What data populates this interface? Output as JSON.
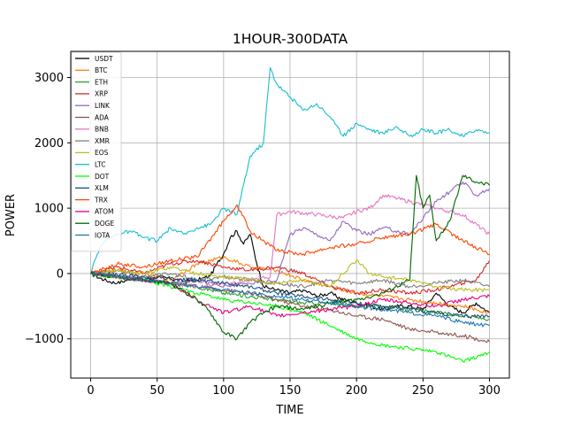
{
  "chart_data": {
    "type": "line",
    "title": "1HOUR-300DATA",
    "xlabel": "TIME",
    "ylabel": "POWER",
    "xlim": [
      -15,
      315
    ],
    "ylim": [
      -1600,
      3400
    ],
    "xticks": [
      0,
      50,
      100,
      150,
      200,
      250,
      300
    ],
    "yticks": [
      -1000,
      0,
      1000,
      2000,
      3000
    ],
    "ytick_labels": [
      "−1000",
      "0",
      "1000",
      "2000",
      "3000"
    ],
    "grid": true,
    "legend_position": "upper-left",
    "series": [
      {
        "name": "USDT",
        "color": "#000000",
        "x": [
          0,
          10,
          20,
          30,
          40,
          50,
          60,
          70,
          80,
          90,
          95,
          100,
          105,
          110,
          115,
          120,
          125,
          130,
          140,
          150,
          160,
          170,
          180,
          190,
          200,
          210,
          220,
          230,
          240,
          250,
          260,
          270,
          280,
          290,
          300
        ],
        "values": [
          0,
          -100,
          -150,
          -80,
          -100,
          -50,
          -80,
          -120,
          -100,
          -40,
          150,
          300,
          550,
          650,
          450,
          600,
          150,
          -200,
          -250,
          -300,
          -250,
          -350,
          -300,
          -400,
          -450,
          -500,
          -550,
          -500,
          -500,
          -550,
          -300,
          -500,
          -600,
          -450,
          -600
        ]
      },
      {
        "name": "BTC",
        "color": "#ff7f0e",
        "x": [
          0,
          20,
          40,
          60,
          80,
          100,
          120,
          140,
          160,
          180,
          200,
          220,
          240,
          260,
          280,
          300
        ],
        "values": [
          0,
          50,
          0,
          -100,
          150,
          250,
          100,
          50,
          -100,
          -200,
          -300,
          -350,
          -400,
          -450,
          -500,
          -600
        ]
      },
      {
        "name": "ETH",
        "color": "#2ca02c",
        "x": [
          0,
          20,
          40,
          60,
          80,
          100,
          120,
          140,
          160,
          180,
          200,
          220,
          240,
          260,
          280,
          300
        ],
        "values": [
          0,
          -50,
          -100,
          -150,
          -200,
          -300,
          -350,
          -400,
          -450,
          -450,
          -500,
          -500,
          -550,
          -600,
          -650,
          -700
        ]
      },
      {
        "name": "XRP",
        "color": "#d62728",
        "x": [
          0,
          20,
          40,
          60,
          80,
          100,
          120,
          140,
          160,
          180,
          200,
          220,
          240,
          260,
          280,
          290,
          300
        ],
        "values": [
          0,
          100,
          0,
          150,
          200,
          100,
          50,
          100,
          0,
          -200,
          -300,
          -250,
          -300,
          -250,
          -150,
          -100,
          200
        ]
      },
      {
        "name": "LINK",
        "color": "#9467bd",
        "x": [
          0,
          20,
          40,
          60,
          80,
          100,
          120,
          140,
          150,
          160,
          170,
          180,
          190,
          200,
          210,
          220,
          240,
          260,
          280,
          290,
          300
        ],
        "values": [
          0,
          -50,
          -100,
          -150,
          -100,
          -200,
          -150,
          -100,
          600,
          700,
          600,
          500,
          800,
          650,
          600,
          700,
          600,
          1100,
          1400,
          1200,
          1300
        ]
      },
      {
        "name": "ADA",
        "color": "#8c564b",
        "x": [
          0,
          20,
          40,
          60,
          80,
          100,
          120,
          140,
          160,
          180,
          200,
          220,
          240,
          260,
          280,
          300
        ],
        "values": [
          0,
          -50,
          -100,
          -150,
          -200,
          -250,
          -300,
          -400,
          -500,
          -550,
          -650,
          -700,
          -850,
          -900,
          -950,
          -1050
        ]
      },
      {
        "name": "BNB",
        "color": "#e377c2",
        "x": [
          0,
          20,
          40,
          60,
          80,
          100,
          120,
          135,
          140,
          150,
          170,
          190,
          200,
          210,
          220,
          240,
          260,
          280,
          300
        ],
        "values": [
          0,
          -50,
          -100,
          -150,
          -200,
          -150,
          -100,
          -50,
          900,
          950,
          900,
          850,
          950,
          1000,
          1200,
          1100,
          1000,
          900,
          600
        ]
      },
      {
        "name": "XMR",
        "color": "#7f7f7f",
        "x": [
          0,
          20,
          40,
          60,
          80,
          100,
          120,
          140,
          160,
          180,
          200,
          220,
          240,
          260,
          280,
          300
        ],
        "values": [
          0,
          50,
          -50,
          0,
          -100,
          -50,
          -100,
          -150,
          -200,
          -100,
          -150,
          -100,
          -200,
          -150,
          -100,
          -200
        ]
      },
      {
        "name": "EOS",
        "color": "#bcbd22",
        "x": [
          0,
          20,
          40,
          60,
          80,
          100,
          120,
          140,
          160,
          180,
          200,
          210,
          220,
          240,
          260,
          280,
          300
        ],
        "values": [
          0,
          50,
          0,
          100,
          0,
          -50,
          -100,
          -150,
          -100,
          -200,
          200,
          0,
          -50,
          -100,
          -200,
          -250,
          -250
        ]
      },
      {
        "name": "LTC",
        "color": "#17becf",
        "x": [
          0,
          5,
          10,
          20,
          30,
          40,
          50,
          60,
          70,
          80,
          90,
          100,
          110,
          120,
          130,
          135,
          140,
          150,
          160,
          170,
          180,
          190,
          200,
          210,
          220,
          230,
          240,
          250,
          260,
          270,
          280,
          290,
          300
        ],
        "values": [
          0,
          300,
          500,
          600,
          650,
          550,
          500,
          700,
          600,
          700,
          750,
          1000,
          900,
          1800,
          2000,
          3150,
          2900,
          2700,
          2500,
          2600,
          2400,
          2100,
          2300,
          2200,
          2150,
          2250,
          2100,
          2200,
          2150,
          2200,
          2100,
          2200,
          2150
        ]
      },
      {
        "name": "DOT",
        "color": "#00ff00",
        "x": [
          0,
          20,
          40,
          60,
          80,
          100,
          120,
          140,
          160,
          180,
          200,
          220,
          240,
          260,
          280,
          300
        ],
        "values": [
          0,
          -50,
          -100,
          -200,
          -300,
          -400,
          -450,
          -500,
          -600,
          -800,
          -1000,
          -1100,
          -1150,
          -1200,
          -1350,
          -1200
        ]
      },
      {
        "name": "XLM",
        "color": "#1f4e79",
        "x": [
          0,
          20,
          40,
          60,
          80,
          100,
          120,
          140,
          160,
          180,
          200,
          220,
          240,
          260,
          280,
          300
        ],
        "values": [
          0,
          -20,
          -50,
          -80,
          -100,
          -150,
          -200,
          -300,
          -350,
          -400,
          -450,
          -500,
          -550,
          -600,
          -650,
          -650
        ]
      },
      {
        "name": "TRX",
        "color": "#ff4500",
        "x": [
          0,
          20,
          40,
          60,
          80,
          100,
          110,
          120,
          140,
          160,
          180,
          200,
          220,
          240,
          260,
          280,
          300
        ],
        "values": [
          0,
          150,
          100,
          200,
          250,
          800,
          1050,
          650,
          350,
          300,
          400,
          450,
          550,
          600,
          750,
          500,
          300
        ]
      },
      {
        "name": "ATOM",
        "color": "#e6007e",
        "x": [
          0,
          20,
          40,
          60,
          80,
          100,
          120,
          140,
          160,
          180,
          200,
          220,
          240,
          260,
          280,
          300
        ],
        "values": [
          0,
          -50,
          -100,
          -150,
          -400,
          -600,
          -500,
          -650,
          -600,
          -550,
          -500,
          -400,
          -450,
          -500,
          -400,
          -350
        ]
      },
      {
        "name": "DOGE",
        "color": "#006400",
        "x": [
          0,
          20,
          40,
          60,
          80,
          90,
          100,
          110,
          120,
          130,
          140,
          160,
          180,
          200,
          220,
          240,
          245,
          250,
          255,
          260,
          270,
          280,
          290,
          300
        ],
        "values": [
          0,
          -50,
          -100,
          -150,
          -400,
          -600,
          -900,
          -1000,
          -750,
          -600,
          -500,
          -550,
          -450,
          -400,
          -300,
          -100,
          1500,
          1000,
          1200,
          500,
          800,
          1500,
          1400,
          1350
        ]
      },
      {
        "name": "IOTA",
        "color": "#1f77b4",
        "x": [
          0,
          20,
          40,
          60,
          80,
          100,
          120,
          140,
          160,
          180,
          200,
          220,
          240,
          260,
          280,
          300
        ],
        "values": [
          0,
          -50,
          -100,
          -150,
          -200,
          -250,
          -300,
          -350,
          -400,
          -450,
          -500,
          -550,
          -600,
          -650,
          -750,
          -800
        ]
      }
    ]
  }
}
